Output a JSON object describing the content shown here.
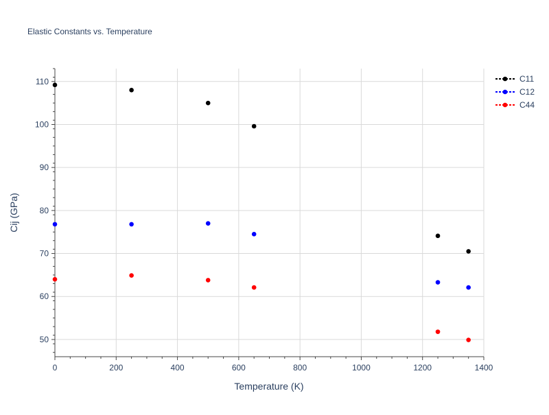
{
  "chart_data": {
    "type": "scatter",
    "title": "Elastic Constants vs. Temperature",
    "xlabel": "Temperature (K)",
    "ylabel": "Cij (GPa)",
    "xlim": [
      0,
      1400
    ],
    "ylim": [
      46,
      113
    ],
    "xticks": [
      0,
      200,
      400,
      600,
      800,
      1000,
      1200,
      1400
    ],
    "yticks": [
      50,
      60,
      70,
      80,
      90,
      100,
      110
    ],
    "grid": true,
    "legend_position": "top-right",
    "x": [
      0,
      250,
      500,
      650,
      1250,
      1350
    ],
    "series": [
      {
        "name": "C11",
        "color": "#000000",
        "values": [
          109.2,
          108.0,
          105.0,
          99.6,
          74.1,
          70.5
        ]
      },
      {
        "name": "C12",
        "color": "#0000ff",
        "values": [
          76.8,
          76.8,
          77.0,
          74.5,
          63.3,
          62.1
        ]
      },
      {
        "name": "C44",
        "color": "#ff0000",
        "values": [
          64.0,
          64.9,
          63.8,
          62.1,
          51.8,
          49.9
        ]
      }
    ]
  }
}
